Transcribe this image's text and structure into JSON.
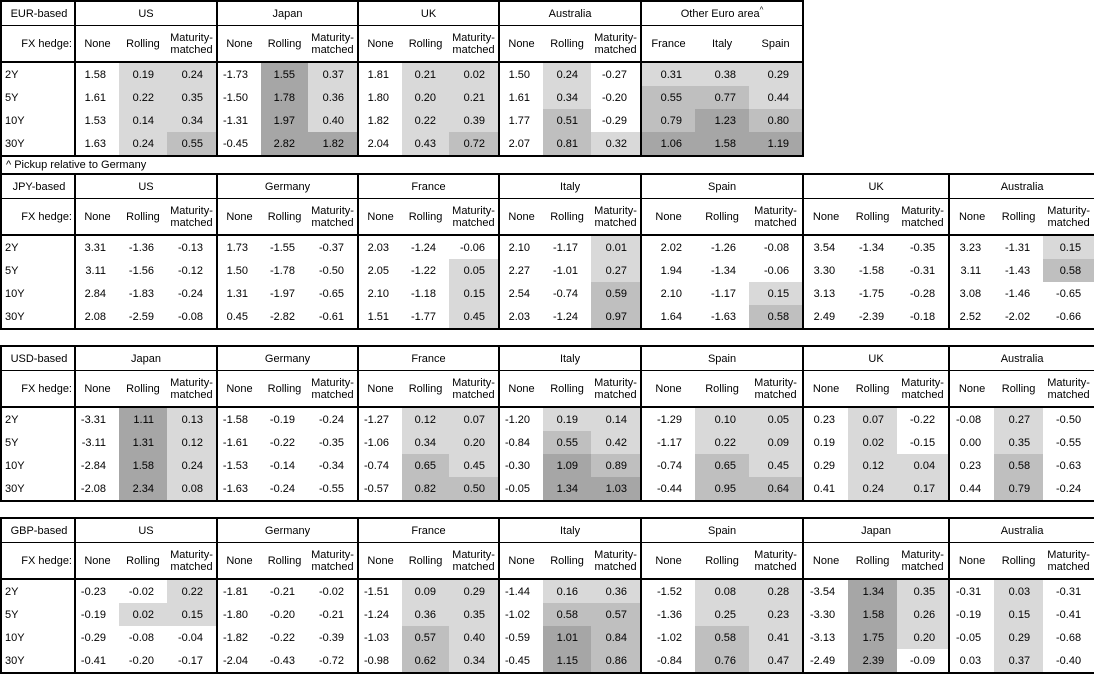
{
  "footnote": "^ Pickup relative to Germany",
  "fx_hedge_label": "FX hedge:",
  "default_col_headers": [
    "None",
    "Rolling",
    "Maturity-matched"
  ],
  "tenor_labels": [
    "2Y",
    "5Y",
    "10Y",
    "30Y"
  ],
  "shading_colors": {
    "negative": "#ffffff",
    "low_0_to_0.5": "#d9d9d9",
    "mid_0.5_to_1": "#bfbfbf",
    "high_over_1": "#a6a6a6"
  },
  "tables": [
    {
      "base": "EUR-based",
      "groups": [
        {
          "name": "US",
          "shaded": [
            false,
            true,
            true
          ],
          "rows": [
            [
              "1.58",
              "0.19",
              "0.24"
            ],
            [
              "1.61",
              "0.22",
              "0.35"
            ],
            [
              "1.53",
              "0.14",
              "0.34"
            ],
            [
              "1.63",
              "0.24",
              "0.55"
            ]
          ]
        },
        {
          "name": "Japan",
          "shaded": [
            false,
            true,
            true
          ],
          "rows": [
            [
              "-1.73",
              "1.55",
              "0.37"
            ],
            [
              "-1.50",
              "1.78",
              "0.36"
            ],
            [
              "-1.31",
              "1.97",
              "0.40"
            ],
            [
              "-0.45",
              "2.82",
              "1.82"
            ]
          ]
        },
        {
          "name": "UK",
          "shaded": [
            false,
            true,
            true
          ],
          "rows": [
            [
              "1.81",
              "0.21",
              "0.02"
            ],
            [
              "1.80",
              "0.20",
              "0.21"
            ],
            [
              "1.82",
              "0.22",
              "0.39"
            ],
            [
              "2.04",
              "0.43",
              "0.72"
            ]
          ]
        },
        {
          "name": "Australia",
          "shaded": [
            false,
            true,
            true
          ],
          "rows": [
            [
              "1.50",
              "0.24",
              "-0.27"
            ],
            [
              "1.61",
              "0.34",
              "-0.20"
            ],
            [
              "1.77",
              "0.51",
              "-0.29"
            ],
            [
              "2.07",
              "0.81",
              "0.32"
            ]
          ]
        },
        {
          "name": "Other Euro area",
          "sup": "^",
          "cols": [
            "France",
            "Italy",
            "Spain"
          ],
          "shaded": [
            true,
            true,
            true
          ],
          "rows": [
            [
              "0.31",
              "0.38",
              "0.29"
            ],
            [
              "0.55",
              "0.77",
              "0.44"
            ],
            [
              "0.79",
              "1.23",
              "0.80"
            ],
            [
              "1.06",
              "1.58",
              "1.19"
            ]
          ]
        }
      ]
    },
    {
      "base": "JPY-based",
      "groups": [
        {
          "name": "US",
          "shaded": [
            false,
            true,
            true
          ],
          "rows": [
            [
              "3.31",
              "-1.36",
              "-0.13"
            ],
            [
              "3.11",
              "-1.56",
              "-0.12"
            ],
            [
              "2.84",
              "-1.83",
              "-0.24"
            ],
            [
              "2.08",
              "-2.59",
              "-0.08"
            ]
          ]
        },
        {
          "name": "Germany",
          "shaded": [
            false,
            true,
            true
          ],
          "rows": [
            [
              "1.73",
              "-1.55",
              "-0.37"
            ],
            [
              "1.50",
              "-1.78",
              "-0.50"
            ],
            [
              "1.31",
              "-1.97",
              "-0.65"
            ],
            [
              "0.45",
              "-2.82",
              "-0.61"
            ]
          ]
        },
        {
          "name": "France",
          "shaded": [
            false,
            true,
            true
          ],
          "rows": [
            [
              "2.03",
              "-1.24",
              "-0.06"
            ],
            [
              "2.05",
              "-1.22",
              "0.05"
            ],
            [
              "2.10",
              "-1.18",
              "0.15"
            ],
            [
              "1.51",
              "-1.77",
              "0.45"
            ]
          ]
        },
        {
          "name": "Italy",
          "shaded": [
            false,
            true,
            true
          ],
          "rows": [
            [
              "2.10",
              "-1.17",
              "0.01"
            ],
            [
              "2.27",
              "-1.01",
              "0.27"
            ],
            [
              "2.54",
              "-0.74",
              "0.59"
            ],
            [
              "2.03",
              "-1.24",
              "0.97"
            ]
          ]
        },
        {
          "name": "Spain",
          "shaded": [
            false,
            true,
            true
          ],
          "rows": [
            [
              "2.02",
              "-1.26",
              "-0.08"
            ],
            [
              "1.94",
              "-1.34",
              "-0.06"
            ],
            [
              "2.10",
              "-1.17",
              "0.15"
            ],
            [
              "1.64",
              "-1.63",
              "0.58"
            ]
          ]
        },
        {
          "name": "UK",
          "shaded": [
            false,
            true,
            true
          ],
          "rows": [
            [
              "3.54",
              "-1.34",
              "-0.35"
            ],
            [
              "3.30",
              "-1.58",
              "-0.31"
            ],
            [
              "3.13",
              "-1.75",
              "-0.28"
            ],
            [
              "2.49",
              "-2.39",
              "-0.18"
            ]
          ]
        },
        {
          "name": "Australia",
          "shaded": [
            false,
            true,
            true
          ],
          "rows": [
            [
              "3.23",
              "-1.31",
              "0.15"
            ],
            [
              "3.11",
              "-1.43",
              "0.58"
            ],
            [
              "3.08",
              "-1.46",
              "-0.65"
            ],
            [
              "2.52",
              "-2.02",
              "-0.66"
            ]
          ]
        }
      ]
    },
    {
      "base": "USD-based",
      "groups": [
        {
          "name": "Japan",
          "shaded": [
            false,
            true,
            true
          ],
          "rows": [
            [
              "-3.31",
              "1.11",
              "0.13"
            ],
            [
              "-3.11",
              "1.31",
              "0.12"
            ],
            [
              "-2.84",
              "1.58",
              "0.24"
            ],
            [
              "-2.08",
              "2.34",
              "0.08"
            ]
          ]
        },
        {
          "name": "Germany",
          "shaded": [
            false,
            true,
            true
          ],
          "rows": [
            [
              "-1.58",
              "-0.19",
              "-0.24"
            ],
            [
              "-1.61",
              "-0.22",
              "-0.35"
            ],
            [
              "-1.53",
              "-0.14",
              "-0.34"
            ],
            [
              "-1.63",
              "-0.24",
              "-0.55"
            ]
          ]
        },
        {
          "name": "France",
          "shaded": [
            false,
            true,
            true
          ],
          "rows": [
            [
              "-1.27",
              "0.12",
              "0.07"
            ],
            [
              "-1.06",
              "0.34",
              "0.20"
            ],
            [
              "-0.74",
              "0.65",
              "0.45"
            ],
            [
              "-0.57",
              "0.82",
              "0.50"
            ]
          ]
        },
        {
          "name": "Italy",
          "shaded": [
            false,
            true,
            true
          ],
          "rows": [
            [
              "-1.20",
              "0.19",
              "0.14"
            ],
            [
              "-0.84",
              "0.55",
              "0.42"
            ],
            [
              "-0.30",
              "1.09",
              "0.89"
            ],
            [
              "-0.05",
              "1.34",
              "1.03"
            ]
          ]
        },
        {
          "name": "Spain",
          "shaded": [
            false,
            true,
            true
          ],
          "rows": [
            [
              "-1.29",
              "0.10",
              "0.05"
            ],
            [
              "-1.17",
              "0.22",
              "0.09"
            ],
            [
              "-0.74",
              "0.65",
              "0.45"
            ],
            [
              "-0.44",
              "0.95",
              "0.64"
            ]
          ]
        },
        {
          "name": "UK",
          "shaded": [
            false,
            true,
            true
          ],
          "rows": [
            [
              "0.23",
              "0.07",
              "-0.22"
            ],
            [
              "0.19",
              "0.02",
              "-0.15"
            ],
            [
              "0.29",
              "0.12",
              "0.04"
            ],
            [
              "0.41",
              "0.24",
              "0.17"
            ]
          ]
        },
        {
          "name": "Australia",
          "shaded": [
            false,
            true,
            true
          ],
          "rows": [
            [
              "-0.08",
              "0.27",
              "-0.50"
            ],
            [
              "0.00",
              "0.35",
              "-0.55"
            ],
            [
              "0.23",
              "0.58",
              "-0.63"
            ],
            [
              "0.44",
              "0.79",
              "-0.24"
            ]
          ]
        }
      ]
    },
    {
      "base": "GBP-based",
      "groups": [
        {
          "name": "US",
          "shaded": [
            false,
            true,
            true
          ],
          "rows": [
            [
              "-0.23",
              "-0.02",
              "0.22"
            ],
            [
              "-0.19",
              "0.02",
              "0.15"
            ],
            [
              "-0.29",
              "-0.08",
              "-0.04"
            ],
            [
              "-0.41",
              "-0.20",
              "-0.17"
            ]
          ]
        },
        {
          "name": "Germany",
          "shaded": [
            false,
            true,
            true
          ],
          "rows": [
            [
              "-1.81",
              "-0.21",
              "-0.02"
            ],
            [
              "-1.80",
              "-0.20",
              "-0.21"
            ],
            [
              "-1.82",
              "-0.22",
              "-0.39"
            ],
            [
              "-2.04",
              "-0.43",
              "-0.72"
            ]
          ]
        },
        {
          "name": "France",
          "shaded": [
            false,
            true,
            true
          ],
          "rows": [
            [
              "-1.51",
              "0.09",
              "0.29"
            ],
            [
              "-1.24",
              "0.36",
              "0.35"
            ],
            [
              "-1.03",
              "0.57",
              "0.40"
            ],
            [
              "-0.98",
              "0.62",
              "0.34"
            ]
          ]
        },
        {
          "name": "Italy",
          "shaded": [
            false,
            true,
            true
          ],
          "rows": [
            [
              "-1.44",
              "0.16",
              "0.36"
            ],
            [
              "-1.02",
              "0.58",
              "0.57"
            ],
            [
              "-0.59",
              "1.01",
              "0.84"
            ],
            [
              "-0.45",
              "1.15",
              "0.86"
            ]
          ]
        },
        {
          "name": "Spain",
          "shaded": [
            false,
            true,
            true
          ],
          "rows": [
            [
              "-1.52",
              "0.08",
              "0.28"
            ],
            [
              "-1.36",
              "0.25",
              "0.23"
            ],
            [
              "-1.02",
              "0.58",
              "0.41"
            ],
            [
              "-0.84",
              "0.76",
              "0.47"
            ]
          ]
        },
        {
          "name": "Japan",
          "shaded": [
            false,
            true,
            true
          ],
          "rows": [
            [
              "-3.54",
              "1.34",
              "0.35"
            ],
            [
              "-3.30",
              "1.58",
              "0.26"
            ],
            [
              "-3.13",
              "1.75",
              "0.20"
            ],
            [
              "-2.49",
              "2.39",
              "-0.09"
            ]
          ]
        },
        {
          "name": "Australia",
          "shaded": [
            false,
            true,
            true
          ],
          "rows": [
            [
              "-0.31",
              "0.03",
              "-0.31"
            ],
            [
              "-0.19",
              "0.15",
              "-0.41"
            ],
            [
              "-0.05",
              "0.29",
              "-0.68"
            ],
            [
              "0.03",
              "0.37",
              "-0.40"
            ]
          ]
        }
      ]
    }
  ]
}
